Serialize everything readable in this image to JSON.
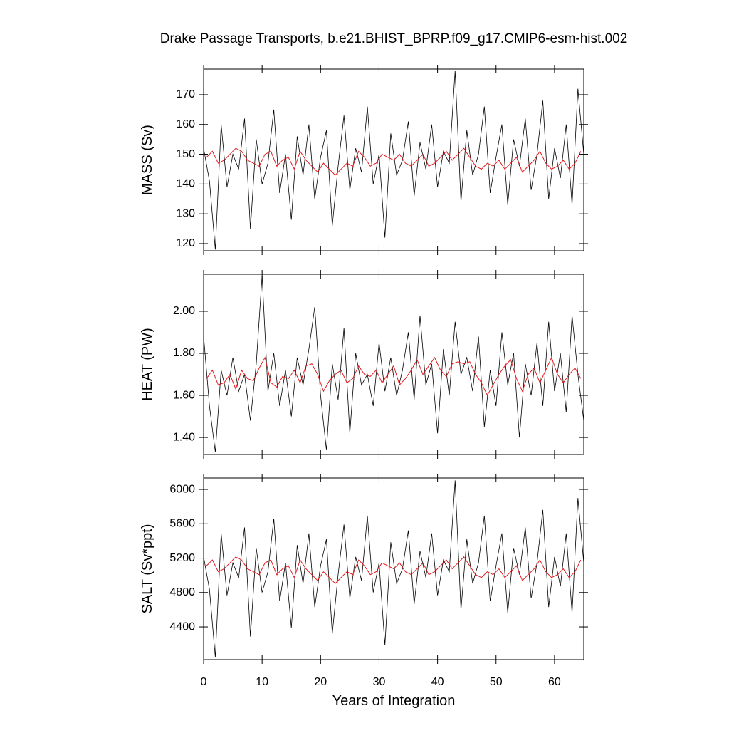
{
  "chart_data": [
    {
      "type": "line",
      "title": "Drake Passage Transports, b.e21.BHIST_BPRP.f09_g17.CMIP6-esm-hist.002",
      "ylabel": "MASS (Sv)",
      "xlim": [
        0,
        65
      ],
      "xticks": [
        0,
        10,
        20,
        30,
        40,
        50,
        60
      ],
      "ylim": [
        117.6,
        178.6
      ],
      "yticks": [
        120,
        130,
        140,
        150,
        160,
        170
      ],
      "series": [
        {
          "color": "#000000",
          "x": [
            0,
            1,
            2,
            3,
            4,
            5,
            6,
            7,
            8,
            9,
            10,
            11,
            12,
            13,
            14,
            15,
            16,
            17,
            18,
            19,
            20,
            21,
            22,
            23,
            24,
            25,
            26,
            27,
            28,
            29,
            30,
            31,
            32,
            33,
            34,
            35,
            36,
            37,
            38,
            39,
            40,
            41,
            42,
            43,
            44,
            45,
            46,
            47,
            48,
            49,
            50,
            51,
            52,
            53,
            54,
            55,
            56,
            57,
            58,
            59,
            60,
            61,
            62,
            63,
            64,
            65
          ],
          "values": [
            152,
            141,
            118,
            160,
            139,
            150,
            145,
            162,
            125,
            155,
            140,
            147,
            165,
            137,
            150,
            128,
            156,
            143,
            160,
            135,
            149,
            158,
            126,
            146,
            163,
            138,
            152,
            144,
            166,
            140,
            150,
            122,
            157,
            143,
            148,
            161,
            136,
            154,
            145,
            160,
            139,
            151,
            147,
            178,
            134,
            158,
            143,
            150,
            166,
            137,
            149,
            160,
            133,
            155,
            146,
            162,
            138,
            150,
            168,
            135,
            152,
            142,
            160,
            133,
            172,
            150
          ]
        },
        {
          "color": "#e31a1c",
          "x": [
            0.5,
            1.5,
            2.5,
            3.5,
            4.5,
            5.5,
            6.5,
            7.5,
            8.5,
            9.5,
            10.5,
            11.5,
            12.5,
            13.5,
            14.5,
            15.5,
            16.5,
            17.5,
            18.5,
            19.5,
            20.5,
            21.5,
            22.5,
            23.5,
            24.5,
            25.5,
            26.5,
            27.5,
            28.5,
            29.5,
            30.5,
            31.5,
            32.5,
            33.5,
            34.5,
            35.5,
            36.5,
            37.5,
            38.5,
            39.5,
            40.5,
            41.5,
            42.5,
            43.5,
            44.5,
            45.5,
            46.5,
            47.5,
            48.5,
            49.5,
            50.5,
            51.5,
            52.5,
            53.5,
            54.5,
            55.5,
            56.5,
            57.5,
            58.5,
            59.5,
            60.5,
            61.5,
            62.5,
            63.5,
            64.5
          ],
          "values": [
            149,
            151,
            147,
            148,
            150,
            152,
            151,
            148,
            147,
            146,
            150,
            151,
            146,
            148,
            149,
            145,
            151,
            148,
            146,
            144,
            147,
            145,
            143,
            145,
            147,
            146,
            151,
            149,
            146,
            147,
            150,
            149,
            148,
            150,
            147,
            146,
            148,
            150,
            146,
            147,
            149,
            151,
            148,
            150,
            152,
            149,
            146,
            145,
            147,
            146,
            148,
            145,
            147,
            149,
            144,
            146,
            148,
            151,
            147,
            145,
            146,
            148,
            145,
            147,
            151
          ]
        }
      ]
    },
    {
      "type": "line",
      "ylabel": "HEAT (PW)",
      "xlim": [
        0,
        65
      ],
      "xticks": [
        0,
        10,
        20,
        30,
        40,
        50,
        60
      ],
      "ylim": [
        1.319,
        2.176
      ],
      "yticks": [
        {
          "value": 1.4,
          "label": "1.40"
        },
        {
          "value": 1.6,
          "label": "1.60"
        },
        {
          "value": 1.8,
          "label": "1.80"
        },
        {
          "value": 2.0,
          "label": "2.00"
        }
      ],
      "series": [
        {
          "color": "#000000",
          "x": [
            0,
            1,
            2,
            3,
            4,
            5,
            6,
            7,
            8,
            9,
            10,
            11,
            12,
            13,
            14,
            15,
            16,
            17,
            18,
            19,
            20,
            21,
            22,
            23,
            24,
            25,
            26,
            27,
            28,
            29,
            30,
            31,
            32,
            33,
            34,
            35,
            36,
            37,
            38,
            39,
            40,
            41,
            42,
            43,
            44,
            45,
            46,
            47,
            48,
            49,
            50,
            51,
            52,
            53,
            54,
            55,
            56,
            57,
            58,
            59,
            60,
            61,
            62,
            63,
            64,
            65
          ],
          "values": [
            1.88,
            1.55,
            1.33,
            1.72,
            1.6,
            1.78,
            1.62,
            1.7,
            1.48,
            1.75,
            2.17,
            1.62,
            1.8,
            1.55,
            1.72,
            1.5,
            1.78,
            1.65,
            1.82,
            2.02,
            1.6,
            1.34,
            1.75,
            1.58,
            1.92,
            1.42,
            1.8,
            1.65,
            1.7,
            1.55,
            1.85,
            1.62,
            1.78,
            1.6,
            1.72,
            1.9,
            1.58,
            1.98,
            1.65,
            1.75,
            1.42,
            1.82,
            1.6,
            1.95,
            1.7,
            1.78,
            1.62,
            1.88,
            1.45,
            1.72,
            1.55,
            1.9,
            1.65,
            1.8,
            1.4,
            1.75,
            1.6,
            1.85,
            1.55,
            1.95,
            1.62,
            1.8,
            1.52,
            1.98,
            1.7,
            1.48
          ]
        },
        {
          "color": "#e31a1c",
          "x": [
            0.5,
            1.5,
            2.5,
            3.5,
            4.5,
            5.5,
            6.5,
            7.5,
            8.5,
            9.5,
            10.5,
            11.5,
            12.5,
            13.5,
            14.5,
            15.5,
            16.5,
            17.5,
            18.5,
            19.5,
            20.5,
            21.5,
            22.5,
            23.5,
            24.5,
            25.5,
            26.5,
            27.5,
            28.5,
            29.5,
            30.5,
            31.5,
            32.5,
            33.5,
            34.5,
            35.5,
            36.5,
            37.5,
            38.5,
            39.5,
            40.5,
            41.5,
            42.5,
            43.5,
            44.5,
            45.5,
            46.5,
            47.5,
            48.5,
            49.5,
            50.5,
            51.5,
            52.5,
            53.5,
            54.5,
            55.5,
            56.5,
            57.5,
            58.5,
            59.5,
            60.5,
            61.5,
            62.5,
            63.5,
            64.5
          ],
          "values": [
            1.68,
            1.72,
            1.65,
            1.66,
            1.7,
            1.63,
            1.72,
            1.68,
            1.67,
            1.73,
            1.78,
            1.66,
            1.64,
            1.69,
            1.68,
            1.72,
            1.66,
            1.74,
            1.75,
            1.7,
            1.62,
            1.67,
            1.7,
            1.72,
            1.66,
            1.68,
            1.74,
            1.7,
            1.69,
            1.72,
            1.66,
            1.7,
            1.74,
            1.65,
            1.68,
            1.72,
            1.77,
            1.7,
            1.74,
            1.78,
            1.72,
            1.69,
            1.75,
            1.76,
            1.75,
            1.76,
            1.7,
            1.66,
            1.6,
            1.65,
            1.7,
            1.74,
            1.77,
            1.68,
            1.62,
            1.7,
            1.73,
            1.66,
            1.72,
            1.78,
            1.7,
            1.66,
            1.7,
            1.73,
            1.68
          ]
        }
      ]
    },
    {
      "type": "line",
      "ylabel": "SALT (Sv*ppt)",
      "xlabel": "Years of Integration",
      "xlim": [
        0,
        65
      ],
      "xticks": [
        0,
        10,
        20,
        30,
        40,
        50,
        60
      ],
      "ylim": [
        4019,
        6133
      ],
      "yticks": [
        4400,
        4800,
        5200,
        5600,
        6000
      ],
      "series": [
        {
          "color": "#000000",
          "x": [
            0,
            1,
            2,
            3,
            4,
            5,
            6,
            7,
            8,
            9,
            10,
            11,
            12,
            13,
            14,
            15,
            16,
            17,
            18,
            19,
            20,
            21,
            22,
            23,
            24,
            25,
            26,
            27,
            28,
            29,
            30,
            31,
            32,
            33,
            34,
            35,
            36,
            37,
            38,
            39,
            40,
            41,
            42,
            43,
            44,
            45,
            46,
            47,
            48,
            49,
            50,
            51,
            52,
            53,
            54,
            55,
            56,
            57,
            58,
            59,
            60,
            61,
            62,
            63,
            64,
            65
          ],
          "values": [
            5214,
            4836,
            4047,
            5488,
            4768,
            5145,
            4974,
            5557,
            4288,
            5317,
            4802,
            5042,
            5660,
            4699,
            5145,
            4390,
            5351,
            4905,
            5488,
            4631,
            5111,
            5419,
            4322,
            5008,
            5591,
            4733,
            5214,
            4939,
            5694,
            4802,
            5145,
            4185,
            5385,
            4905,
            5076,
            5522,
            4665,
            5282,
            4974,
            5488,
            4768,
            5179,
            5042,
            6105,
            4596,
            5419,
            4905,
            5145,
            5694,
            4699,
            5111,
            5488,
            4562,
            5317,
            5008,
            5557,
            4733,
            5145,
            5762,
            4631,
            5214,
            4871,
            5488,
            4562,
            5900,
            5145
          ]
        },
        {
          "color": "#e31a1c",
          "x": [
            0.5,
            1.5,
            2.5,
            3.5,
            4.5,
            5.5,
            6.5,
            7.5,
            8.5,
            9.5,
            10.5,
            11.5,
            12.5,
            13.5,
            14.5,
            15.5,
            16.5,
            17.5,
            18.5,
            19.5,
            20.5,
            21.5,
            22.5,
            23.5,
            24.5,
            25.5,
            26.5,
            27.5,
            28.5,
            29.5,
            30.5,
            31.5,
            32.5,
            33.5,
            34.5,
            35.5,
            36.5,
            37.5,
            38.5,
            39.5,
            40.5,
            41.5,
            42.5,
            43.5,
            44.5,
            45.5,
            46.5,
            47.5,
            48.5,
            49.5,
            50.5,
            51.5,
            52.5,
            53.5,
            54.5,
            55.5,
            56.5,
            57.5,
            58.5,
            59.5,
            60.5,
            61.5,
            62.5,
            63.5,
            64.5
          ],
          "values": [
            5111,
            5179,
            5042,
            5076,
            5145,
            5214,
            5179,
            5076,
            5042,
            5008,
            5145,
            5179,
            5008,
            5076,
            5111,
            4974,
            5179,
            5076,
            5008,
            4939,
            5042,
            4974,
            4905,
            4974,
            5042,
            5008,
            5179,
            5111,
            5008,
            5042,
            5145,
            5111,
            5076,
            5145,
            5042,
            5008,
            5076,
            5145,
            5008,
            5042,
            5111,
            5179,
            5076,
            5145,
            5214,
            5111,
            5008,
            4974,
            5042,
            5008,
            5076,
            4974,
            5042,
            5111,
            4939,
            5008,
            5076,
            5179,
            5042,
            4974,
            5008,
            5076,
            4974,
            5042,
            5179
          ]
        }
      ]
    }
  ]
}
